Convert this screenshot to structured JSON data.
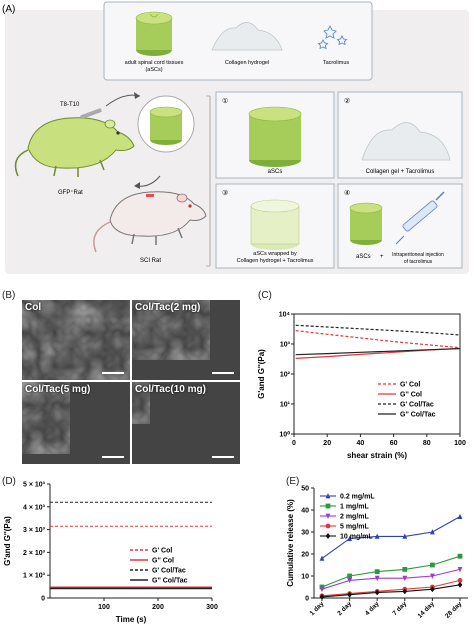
{
  "panelA": {
    "label": "(A)",
    "top_box": {
      "items": [
        {
          "label": "adult spinal cord tissues",
          "sub": "(aSCs)"
        },
        {
          "label": "Collagen hydrogel"
        },
        {
          "label": "Tacrolimus"
        }
      ]
    },
    "surgery_label": "T8-T10",
    "gfp_rat": "GFP⁺Rat",
    "sci_rat": "SCI Rat",
    "groups": [
      {
        "num": "①",
        "caption": "aSCs"
      },
      {
        "num": "②",
        "caption": "Collagen gel + Tacrolimus"
      },
      {
        "num": "③",
        "caption": "aSCs wrapped by",
        "caption2": "Collagen hydrogel + Tacrolimus"
      },
      {
        "num": "④",
        "caption": "aSCs",
        "plus": "+",
        "caption2": "Intraperitoneal injection",
        "caption3": "of tacrolimus"
      }
    ]
  },
  "panelB": {
    "label": "(B)",
    "images": [
      {
        "label": "Col"
      },
      {
        "label": "Col/Tac(2 mg)"
      },
      {
        "label": "Col/Tac(5 mg)"
      },
      {
        "label": "Col/Tac(10 mg)"
      }
    ]
  },
  "panelC": {
    "label": "(C)",
    "chart_data": {
      "type": "line",
      "xlabel": "shear strain (%)",
      "ylabel": "G'and G''(Pa)",
      "yscale": "log",
      "xlim": [
        0,
        100
      ],
      "ylim": [
        1,
        10000
      ],
      "x_ticks": [
        "0",
        "20",
        "40",
        "60",
        "80",
        "100"
      ],
      "y_ticks": [
        "10⁰",
        "10¹",
        "10²",
        "10³",
        "10⁴"
      ],
      "legend_position": "bottom-right",
      "series": [
        {
          "name": "G' Col",
          "color": "#e0393e",
          "dash": true,
          "x": [
            1,
            20,
            40,
            60,
            80,
            100
          ],
          "y": [
            2800,
            2100,
            1600,
            1200,
            950,
            750
          ]
        },
        {
          "name": "G'' Col",
          "color": "#e0393e",
          "dash": false,
          "x": [
            1,
            20,
            40,
            60,
            80,
            100
          ],
          "y": [
            330,
            380,
            450,
            530,
            620,
            720
          ]
        },
        {
          "name": "G' Col/Tac",
          "color": "#222222",
          "dash": true,
          "x": [
            1,
            20,
            40,
            60,
            80,
            100
          ],
          "y": [
            4200,
            3700,
            3200,
            2800,
            2400,
            2000
          ]
        },
        {
          "name": "G'' Col/Tac",
          "color": "#222222",
          "dash": false,
          "x": [
            1,
            20,
            40,
            60,
            80,
            100
          ],
          "y": [
            440,
            480,
            530,
            580,
            640,
            700
          ]
        }
      ]
    }
  },
  "panelD": {
    "label": "(D)",
    "chart_data": {
      "type": "line",
      "xlabel": "Time (s)",
      "ylabel": "G'and G''(Pa)",
      "xlim": [
        0,
        300
      ],
      "ylim": [
        0,
        5000
      ],
      "x_ticks": [
        "100",
        "200",
        "300"
      ],
      "y_ticks": [
        "0",
        "1 × 10³",
        "2 × 10³",
        "3 × 10³",
        "4 × 10³",
        "5 × 10³"
      ],
      "legend_position": "bottom-right",
      "series": [
        {
          "name": "G' Col",
          "color": "#e0393e",
          "dash": true,
          "x": [
            0,
            300
          ],
          "y": [
            3150,
            3150
          ]
        },
        {
          "name": "G'' Col",
          "color": "#e0393e",
          "dash": false,
          "x": [
            0,
            300
          ],
          "y": [
            470,
            470
          ]
        },
        {
          "name": "G' Col/Tac",
          "color": "#222222",
          "dash": true,
          "x": [
            0,
            300
          ],
          "y": [
            4200,
            4200
          ]
        },
        {
          "name": "G'' Col/Tac",
          "color": "#222222",
          "dash": false,
          "x": [
            0,
            300
          ],
          "y": [
            420,
            420
          ]
        }
      ]
    }
  },
  "panelE": {
    "label": "(E)",
    "chart_data": {
      "type": "line",
      "xlabel": "",
      "ylabel": "Cumulative release (%)",
      "categories": [
        "1 day",
        "2 day",
        "4 day",
        "7 day",
        "14 day",
        "28 day"
      ],
      "ylim": [
        0,
        50
      ],
      "y_ticks": [
        "0",
        "10",
        "20",
        "30",
        "40",
        "50"
      ],
      "legend_position": "top-left",
      "series": [
        {
          "name": "0.2 mg/mL",
          "color": "#2f3fb5",
          "marker": "triangle-up",
          "values": [
            18,
            27,
            28,
            28,
            30,
            37
          ]
        },
        {
          "name": "1 mg/mL",
          "color": "#2a9a3a",
          "marker": "square",
          "values": [
            5,
            10,
            12,
            13,
            15,
            19
          ]
        },
        {
          "name": "2 mg/mL",
          "color": "#9a3ad0",
          "marker": "triangle-down",
          "values": [
            4,
            8,
            9,
            9,
            10,
            13
          ]
        },
        {
          "name": "5 mg/mL",
          "color": "#e0393e",
          "marker": "circle",
          "values": [
            1,
            2,
            3,
            4,
            5,
            8
          ]
        },
        {
          "name": "10 mg/mL",
          "color": "#111111",
          "marker": "diamond",
          "values": [
            0.5,
            1.5,
            2.5,
            3,
            4,
            6
          ]
        }
      ]
    }
  }
}
